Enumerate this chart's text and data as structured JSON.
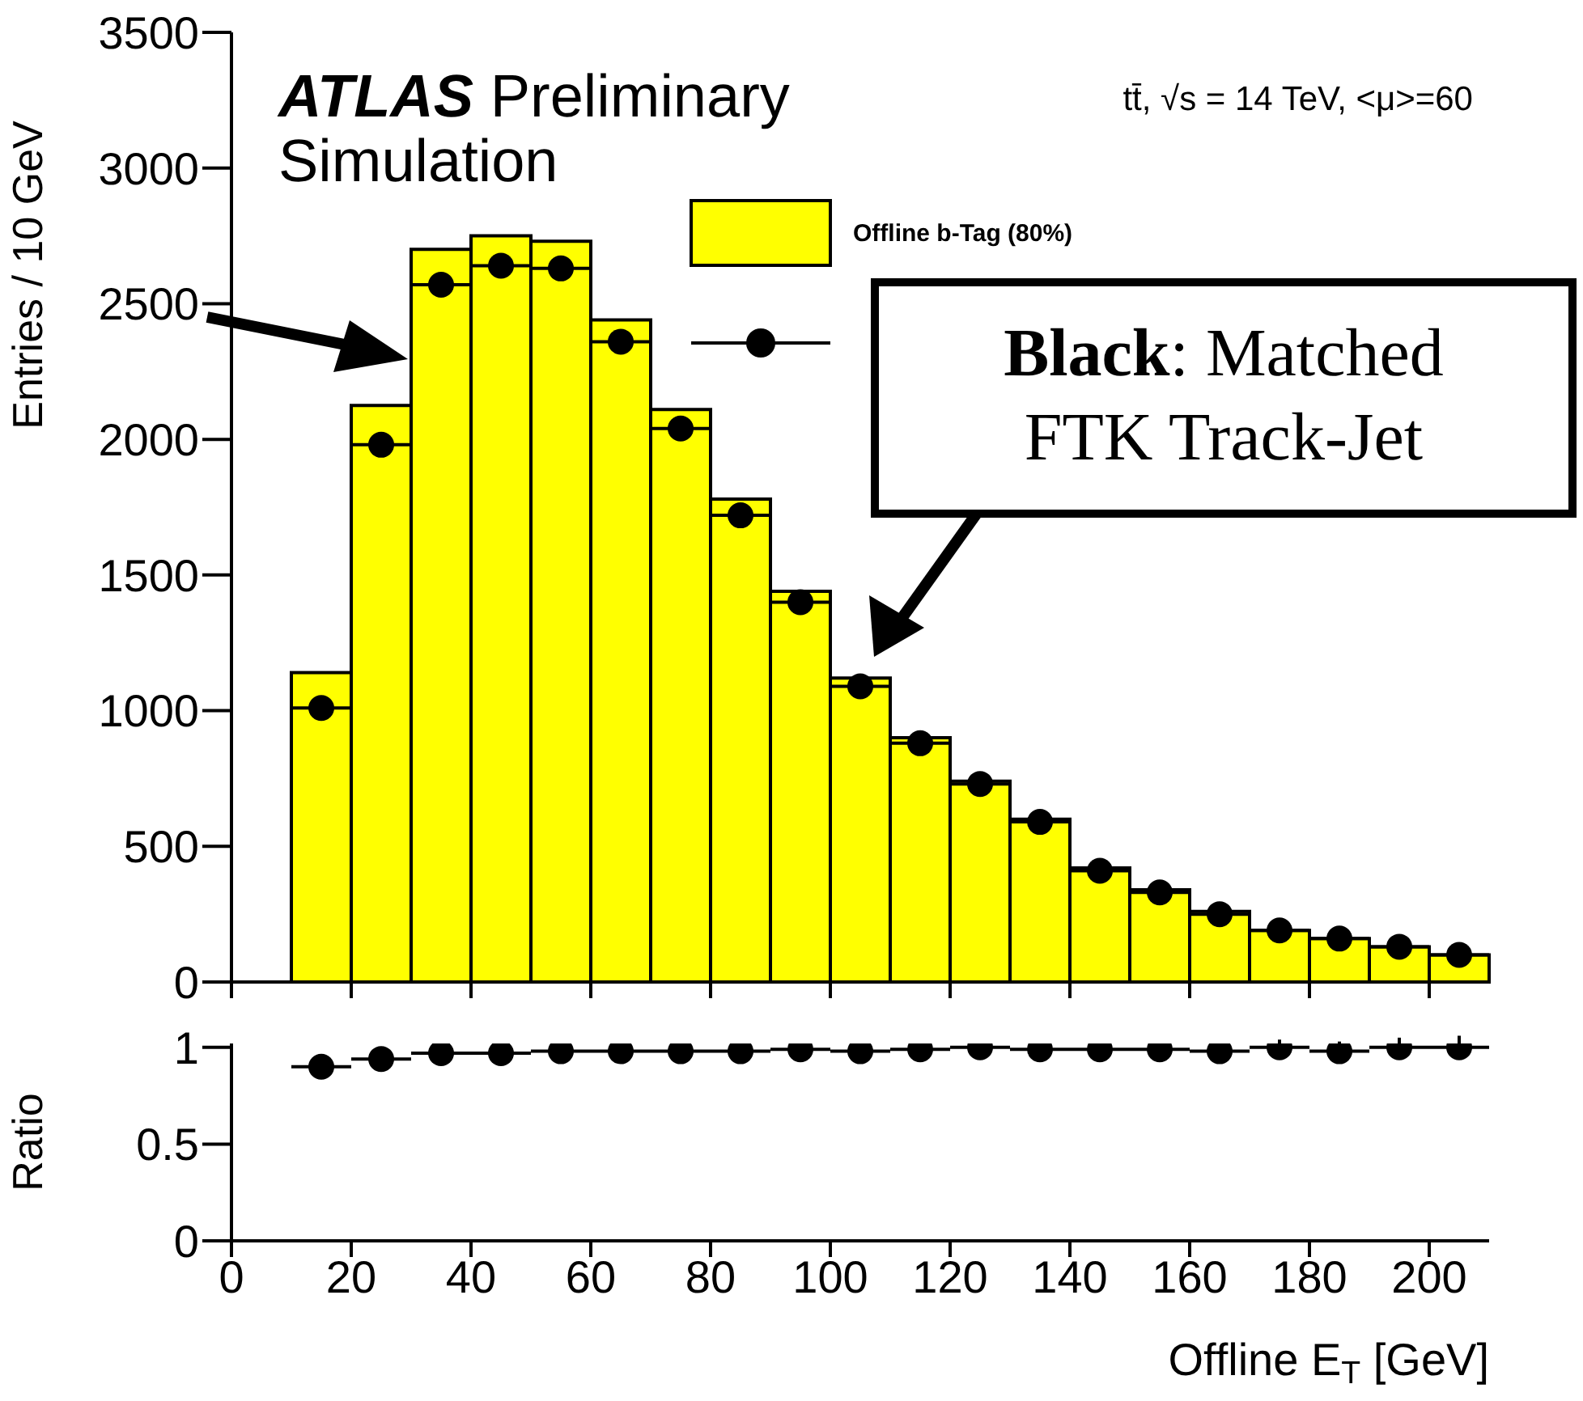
{
  "chart_data": [
    {
      "type": "histogram",
      "ylabel": "Entries / 10 GeV",
      "bins": [
        10,
        20,
        30,
        40,
        50,
        60,
        70,
        80,
        90,
        100,
        110,
        120,
        130,
        140,
        150,
        160,
        170,
        180,
        190,
        200,
        210
      ],
      "series": [
        {
          "name": "Offline b-Tag (80%)",
          "color": "#ffff00",
          "values": [
            1140,
            2125,
            2700,
            2750,
            2730,
            2440,
            2110,
            1780,
            1440,
            1120,
            900,
            740,
            600,
            420,
            340,
            260,
            190,
            160,
            130,
            100
          ]
        },
        {
          "type": "scatter",
          "color": "#000000",
          "x": [
            15,
            25,
            35,
            45,
            55,
            65,
            75,
            85,
            95,
            105,
            115,
            125,
            135,
            145,
            155,
            165,
            175,
            185,
            195,
            205
          ],
          "values": [
            1010,
            1980,
            2570,
            2640,
            2630,
            2360,
            2040,
            1720,
            1400,
            1090,
            880,
            730,
            590,
            410,
            330,
            250,
            190,
            160,
            130,
            100
          ],
          "xerrors": [
            5,
            5,
            5,
            5,
            5,
            5,
            5,
            5,
            5,
            5,
            5,
            5,
            5,
            5,
            5,
            5,
            5,
            5,
            5,
            5
          ]
        }
      ],
      "xlim": [
        0,
        210
      ],
      "xticks": [
        0,
        20,
        40,
        60,
        80,
        100,
        120,
        140,
        160,
        180,
        200
      ],
      "ylim": [
        0,
        3500
      ],
      "yticks": [
        0,
        500,
        1000,
        1500,
        2000,
        2500,
        3000,
        3500
      ],
      "tick_labels": "y",
      "marker": "circle",
      "legend": "top right",
      "grid": false,
      "annotations": [
        "ATLAS Preliminary Simulation",
        "tt̄, √s = 14 TeV, <μ>=60",
        "Black: Matched FTK Track-Jet"
      ]
    },
    {
      "type": "scatter",
      "xlabel": "Offline E$_{T}$ [GeV]",
      "ylabel": "Ratio",
      "series": [
        {
          "color": "#000000",
          "x": [
            15,
            25,
            35,
            45,
            55,
            65,
            75,
            85,
            95,
            105,
            115,
            125,
            135,
            145,
            155,
            165,
            175,
            185,
            195,
            205
          ],
          "values": [
            0.9,
            0.94,
            0.97,
            0.97,
            0.98,
            0.98,
            0.98,
            0.98,
            0.99,
            0.98,
            0.99,
            1.0,
            0.99,
            0.99,
            0.99,
            0.98,
            1.0,
            0.98,
            1.0,
            1.0
          ],
          "errors": [
            null,
            null,
            null,
            null,
            null,
            null,
            null,
            null,
            null,
            null,
            null,
            null,
            null,
            null,
            0.03,
            0.04,
            0.04,
            0.05,
            0.05,
            0.06
          ],
          "xerrors": [
            5,
            5,
            5,
            5,
            5,
            5,
            5,
            5,
            5,
            5,
            5,
            5,
            5,
            5,
            5,
            5,
            5,
            5,
            5,
            5
          ]
        }
      ],
      "xlim": [
        0,
        210
      ],
      "xticks": [
        0,
        20,
        40,
        60,
        80,
        100,
        120,
        140,
        160,
        180,
        200
      ],
      "ylim": [
        0,
        1.02
      ],
      "yticks": [
        0,
        0.5,
        1
      ],
      "marker": "circle",
      "grid": false
    }
  ]
}
